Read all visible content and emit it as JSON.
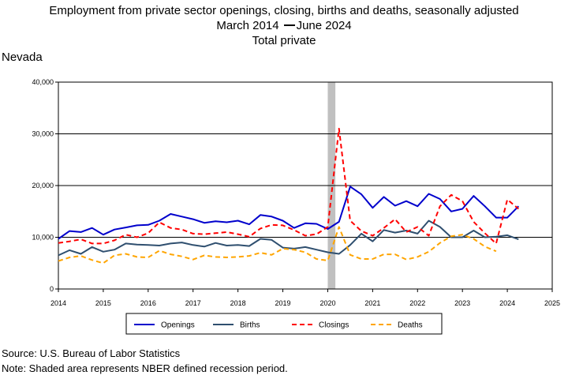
{
  "title": {
    "line1": "Employment from private sector openings, closing, births and deaths, seasonally adjusted",
    "line2_start": "March 2014",
    "line2_end": "June 2024",
    "line3": "Total private"
  },
  "region": "Nevada",
  "footer": {
    "source": "Source: U.S. Bureau of Labor Statistics",
    "note": "Note: Shaded area represents NBER defined recession period."
  },
  "chart_data": {
    "type": "line",
    "xlim": [
      2014,
      2025
    ],
    "ylim": [
      0,
      40000
    ],
    "x_ticks": [
      "2014",
      "2015",
      "2016",
      "2017",
      "2018",
      "2019",
      "2020",
      "2021",
      "2022",
      "2023",
      "2024",
      "2025"
    ],
    "y_ticks": [
      "0",
      "10,000",
      "20,000",
      "30,000",
      "40,000"
    ],
    "grid": "horizontal",
    "legend_position": "bottom",
    "recession": {
      "start": 2020.0,
      "end": 2020.17,
      "color": "#c0c0c0"
    },
    "x": [
      2014.0,
      2014.25,
      2014.5,
      2014.75,
      2015.0,
      2015.25,
      2015.5,
      2015.75,
      2016.0,
      2016.25,
      2016.5,
      2016.75,
      2017.0,
      2017.25,
      2017.5,
      2017.75,
      2018.0,
      2018.25,
      2018.5,
      2018.75,
      2019.0,
      2019.25,
      2019.5,
      2019.75,
      2020.0,
      2020.25,
      2020.5,
      2020.75,
      2021.0,
      2021.25,
      2021.5,
      2021.75,
      2022.0,
      2022.25,
      2022.5,
      2022.75,
      2023.0,
      2023.25,
      2023.5,
      2023.75,
      2024.0,
      2024.25
    ],
    "series": [
      {
        "name": "Openings",
        "color": "#0000cc",
        "dash": "solid",
        "values": [
          9700,
          11200,
          11000,
          11800,
          10500,
          11500,
          11900,
          12300,
          12400,
          13200,
          14500,
          14000,
          13500,
          12800,
          13100,
          12900,
          13200,
          12500,
          14300,
          14000,
          13200,
          11800,
          12700,
          12600,
          11600,
          13000,
          19800,
          18300,
          15700,
          17800,
          16100,
          17000,
          16000,
          18400,
          17400,
          15000,
          15500,
          18000,
          16000,
          13800,
          13800,
          16000
        ]
      },
      {
        "name": "Births",
        "color": "#2f4f6f",
        "dash": "solid",
        "values": [
          6500,
          7500,
          6800,
          8100,
          7200,
          7600,
          8800,
          8600,
          8500,
          8400,
          8800,
          9000,
          8500,
          8200,
          8900,
          8400,
          8500,
          8300,
          9700,
          9500,
          8000,
          7800,
          8100,
          7600,
          7100,
          6800,
          8500,
          10700,
          9200,
          11400,
          10900,
          11300,
          10700,
          13200,
          12000,
          10000,
          10000,
          11300,
          10000,
          10100,
          10400,
          9600
        ]
      },
      {
        "name": "Closings",
        "color": "#ff0000",
        "dash": "dashed",
        "values": [
          8900,
          9200,
          9600,
          8800,
          8800,
          9400,
          10500,
          10000,
          10800,
          12900,
          11800,
          11500,
          10700,
          10600,
          10800,
          11000,
          10600,
          10100,
          11700,
          12400,
          12300,
          11400,
          10300,
          10600,
          12000,
          31000,
          13200,
          11200,
          10300,
          11800,
          13500,
          11000,
          12000,
          10300,
          16000,
          18200,
          17000,
          13000,
          10800,
          8800,
          17300,
          15500
        ]
      },
      {
        "name": "Deaths",
        "color": "#ffa500",
        "dash": "dashed",
        "values": [
          5400,
          6100,
          6400,
          5600,
          5000,
          6500,
          6800,
          6200,
          6100,
          7400,
          6700,
          6300,
          5700,
          6500,
          6200,
          6100,
          6200,
          6400,
          7000,
          6600,
          7800,
          7600,
          7100,
          5800,
          5500,
          12000,
          6600,
          5800,
          5800,
          6700,
          6700,
          5700,
          6200,
          7200,
          8900,
          10200,
          10500,
          9700,
          8200,
          7300,
          null,
          null
        ]
      }
    ]
  }
}
